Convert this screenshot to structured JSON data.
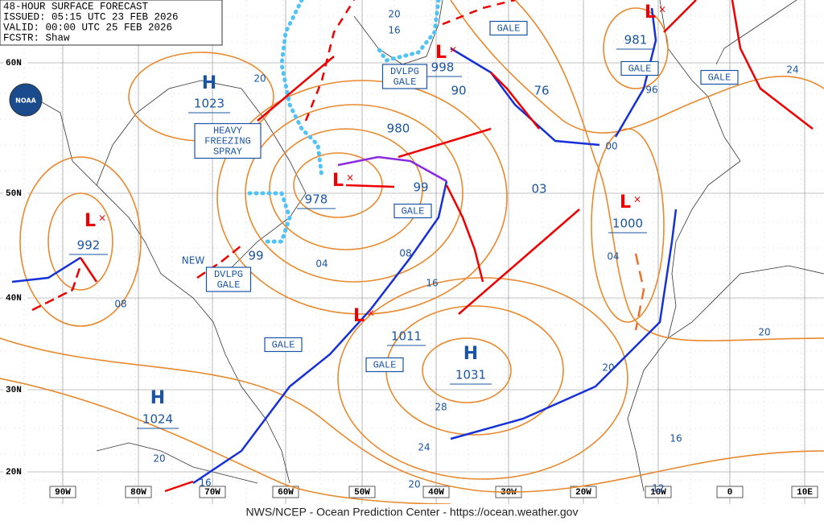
{
  "header": {
    "lines": [
      "48-HOUR SURFACE FORECAST",
      "ISSUED: 05:15 UTC 23 FEB 2026",
      "VALID: 00:00 UTC 25 FEB 2026",
      "FCSTR: Shaw"
    ]
  },
  "logo": "NOAA",
  "footer": "NWS/NCEP - Ocean Prediction Center - https://ocean.weather.gov",
  "lat_labels": [
    "60N",
    "50N",
    "40N",
    "30N",
    "20N"
  ],
  "lon_labels": [
    "90W",
    "80W",
    "70W",
    "60W",
    "50W",
    "40W",
    "30W",
    "20W",
    "10W",
    "0",
    "10E"
  ],
  "highs": [
    {
      "symbol": "H",
      "pressure": "1023"
    },
    {
      "symbol": "H",
      "pressure": "1031"
    },
    {
      "symbol": "H",
      "pressure": "1024"
    }
  ],
  "lows": [
    {
      "symbol": "L",
      "pressure": "978"
    },
    {
      "symbol": "L",
      "pressure": "1011"
    },
    {
      "symbol": "L",
      "pressure": "1000"
    },
    {
      "symbol": "L",
      "pressure": "992"
    },
    {
      "symbol": "L",
      "pressure": "998"
    },
    {
      "symbol": "L",
      "pressure": "981"
    }
  ],
  "pressure_labels": [
    "980",
    "99",
    "99",
    "90",
    "76",
    "03"
  ],
  "isobar_labels": [
    "20",
    "16",
    "20",
    "96",
    "00",
    "24",
    "04",
    "08",
    "16",
    "08",
    "04",
    "20",
    "20",
    "28",
    "24",
    "16",
    "20",
    "16",
    "20",
    "12"
  ],
  "warnings": [
    {
      "lines": [
        "GALE"
      ]
    },
    {
      "lines": [
        "DVLPG",
        "GALE"
      ]
    },
    {
      "lines": [
        "GALE"
      ]
    },
    {
      "lines": [
        "GALE"
      ]
    },
    {
      "lines": [
        "GALE"
      ]
    },
    {
      "lines": [
        "DVLPG",
        "GALE"
      ]
    },
    {
      "lines": [
        "GALE"
      ]
    },
    {
      "lines": [
        "GALE"
      ]
    },
    {
      "lines": [
        "HEAVY",
        "FREEZING",
        "SPRAY"
      ]
    }
  ],
  "notes": [
    "NEW"
  ]
}
